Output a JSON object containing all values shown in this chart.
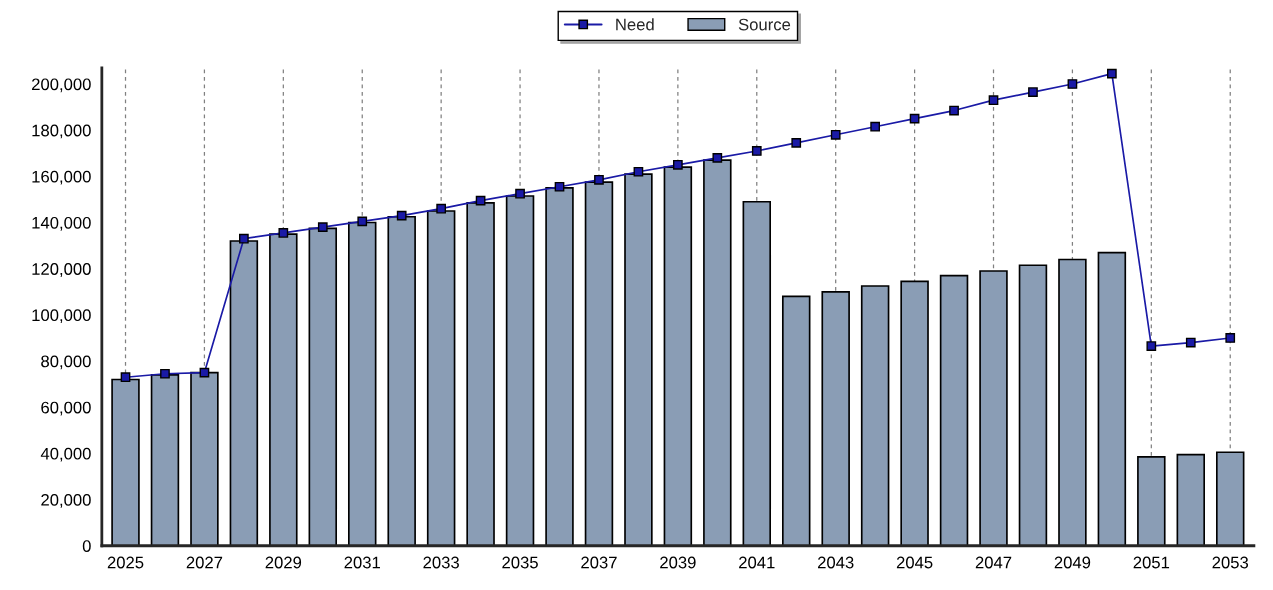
{
  "chart_data": {
    "type": "bar",
    "categories": [
      "2025",
      null,
      "2027",
      null,
      "2029",
      null,
      "2031",
      null,
      "2033",
      null,
      "2035",
      null,
      "2037",
      null,
      "2039",
      null,
      "2041",
      null,
      "2043",
      null,
      "2045",
      null,
      "2047",
      null,
      "2049",
      null,
      "2051",
      null,
      "2053"
    ],
    "series": [
      {
        "name": "Need",
        "type": "line",
        "color": "#1a1aa6",
        "marker": "square",
        "values": [
          73000,
          74500,
          75000,
          133000,
          135500,
          138000,
          140500,
          143000,
          146000,
          149500,
          152500,
          155500,
          158500,
          162000,
          165000,
          168000,
          171000,
          174500,
          178000,
          181500,
          185000,
          188500,
          193000,
          196500,
          200000,
          204500,
          86500,
          88000,
          90000
        ]
      },
      {
        "name": "Source",
        "color": "#8a9db5",
        "values": [
          72000,
          74000,
          75000,
          132000,
          135000,
          137500,
          140000,
          142500,
          145000,
          148500,
          151500,
          155000,
          157500,
          161000,
          164000,
          167000,
          149000,
          108000,
          110000,
          112500,
          114500,
          117000,
          119000,
          121500,
          124000,
          127000,
          38500,
          39500,
          40500
        ]
      }
    ],
    "ylim": [
      0,
      207000
    ],
    "yticks": [
      {
        "value": 0,
        "label": "0"
      },
      {
        "value": 20000,
        "label": "20,000"
      },
      {
        "value": 40000,
        "label": "40,000"
      },
      {
        "value": 60000,
        "label": "60,000"
      },
      {
        "value": 80000,
        "label": "80,000"
      },
      {
        "value": 100000,
        "label": "100,000"
      },
      {
        "value": 120000,
        "label": "120,000"
      },
      {
        "value": 140000,
        "label": "140,000"
      },
      {
        "value": 160000,
        "label": "160,000"
      },
      {
        "value": 180000,
        "label": "180,000"
      },
      {
        "value": 200000,
        "label": "200,000"
      }
    ],
    "grid": "x",
    "legend": "top"
  }
}
